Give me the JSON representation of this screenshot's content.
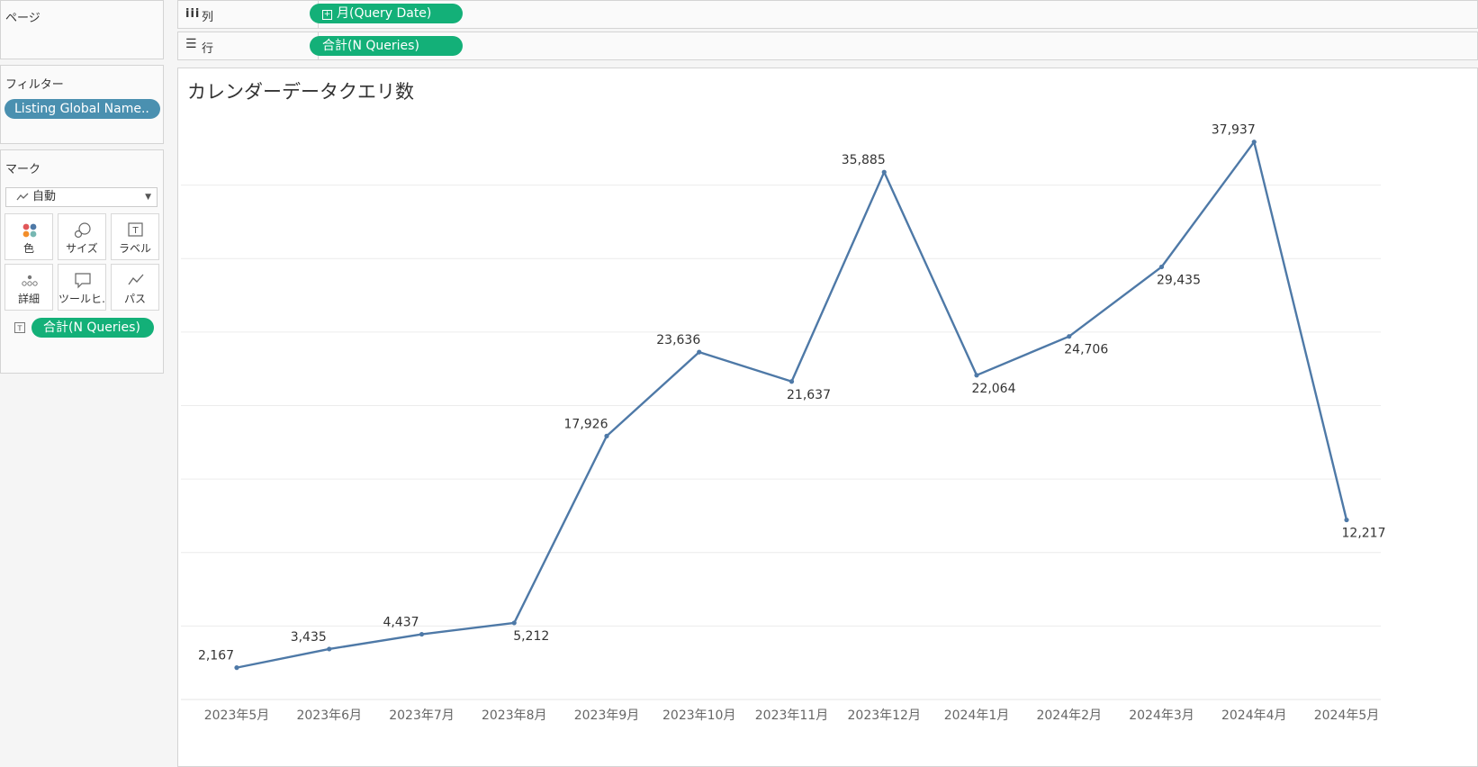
{
  "pages_shelf": {
    "title": "ページ"
  },
  "columns_shelf": {
    "title": "列",
    "icon": "columns-icon",
    "pill": "月(Query Date)",
    "pill_icon": "expand-plus-icon"
  },
  "rows_shelf": {
    "title": "行",
    "icon": "rows-icon",
    "pill": "合計(N Queries)"
  },
  "filters": {
    "title": "フィルター",
    "pill": "Listing Global Name.."
  },
  "marks": {
    "title": "マーク",
    "mark_type": "自動",
    "buttons": [
      {
        "label": "色",
        "icon": "color-icon"
      },
      {
        "label": "サイズ",
        "icon": "size-icon"
      },
      {
        "label": "ラベル",
        "icon": "label-icon"
      },
      {
        "label": "詳細",
        "icon": "detail-icon"
      },
      {
        "label": "ツールヒ…",
        "icon": "tooltip-icon"
      },
      {
        "label": "パス",
        "icon": "path-icon"
      }
    ],
    "label_pill": "合計(N Queries)"
  },
  "colors": {
    "line": "#4e79a7",
    "pill_green": "#13b078",
    "pill_blue": "#4a90b0"
  },
  "chart_data": {
    "type": "line",
    "title": "カレンダーデータクエリ数",
    "categories": [
      "2023年5月",
      "2023年6月",
      "2023年7月",
      "2023年8月",
      "2023年9月",
      "2023年10月",
      "2023年11月",
      "2023年12月",
      "2024年1月",
      "2024年2月",
      "2024年3月",
      "2024年4月",
      "2024年5月"
    ],
    "series": [
      {
        "values": [
          2167,
          3435,
          4437,
          5212,
          17926,
          23636,
          21637,
          35885,
          22064,
          24706,
          29435,
          37937,
          12217
        ]
      }
    ],
    "data_labels": [
      "2,167",
      "3,435",
      "4,437",
      "5,212",
      "17,926",
      "23,636",
      "21,637",
      "35,885",
      "22,064",
      "24,706",
      "29,435",
      "37,937",
      "12,217"
    ],
    "ylim": [
      0,
      40000
    ],
    "gridlines": true,
    "xlabel": "",
    "ylabel": ""
  }
}
